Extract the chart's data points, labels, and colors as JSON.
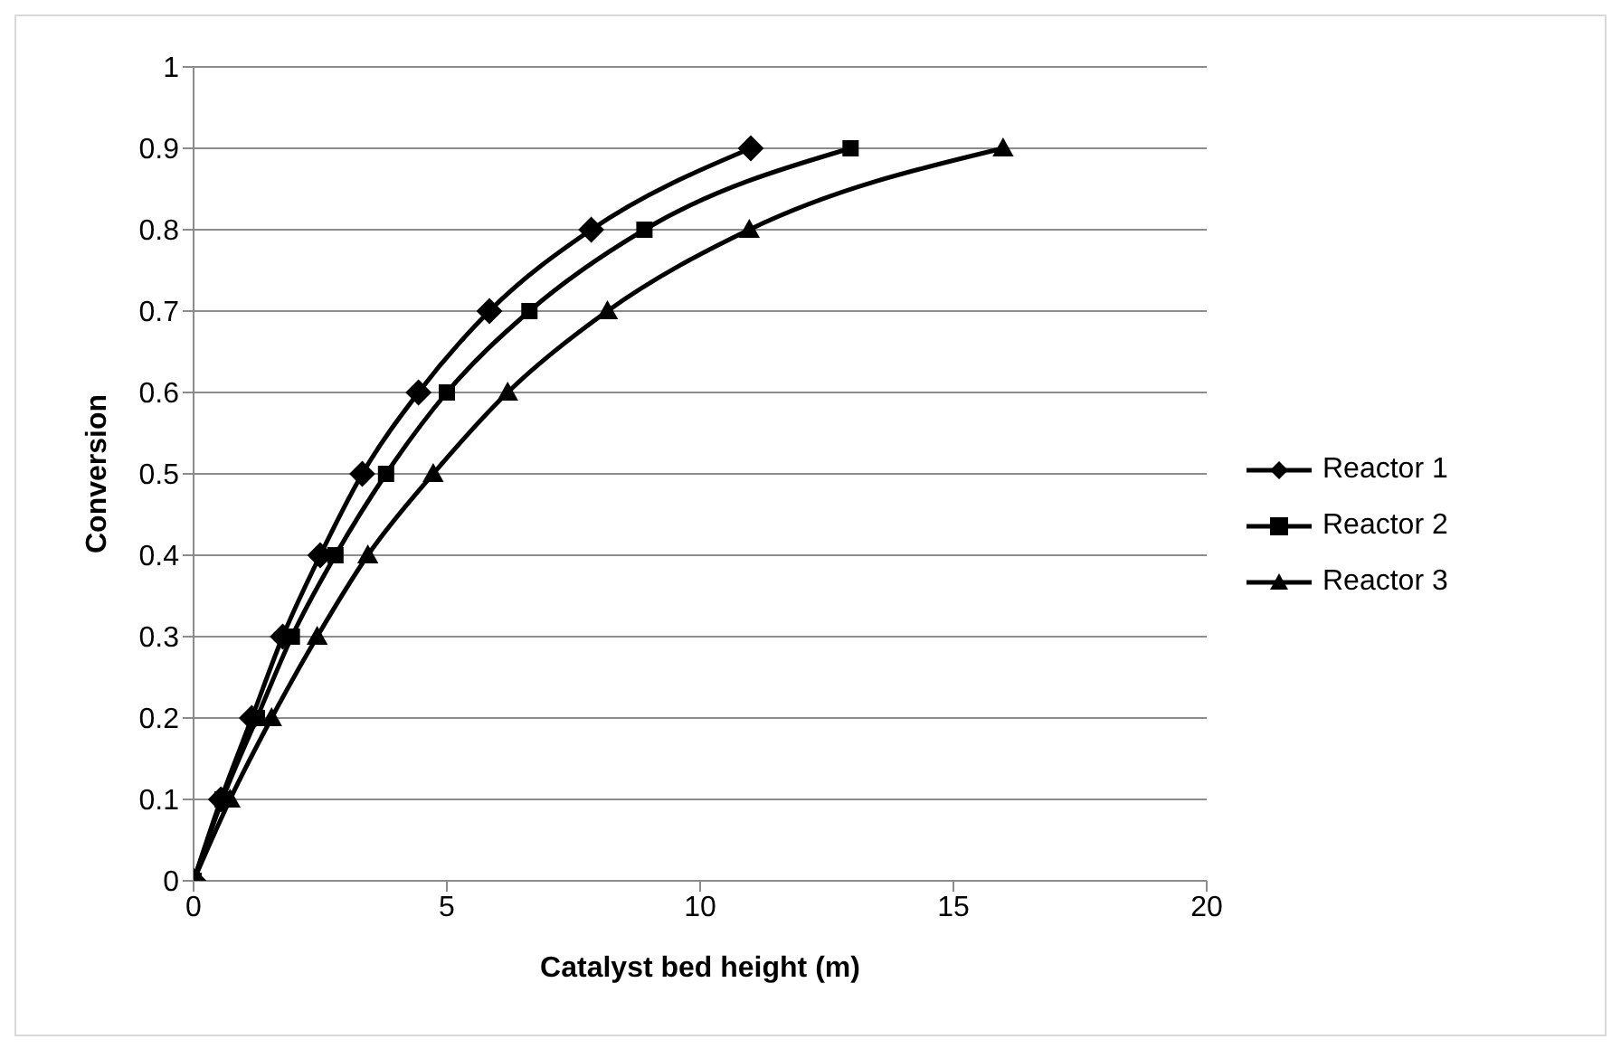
{
  "chart_data": {
    "type": "line",
    "xlabel": "Catalyst bed height (m)",
    "ylabel": "Conversion",
    "xlim": [
      0,
      20
    ],
    "xticks": [
      0,
      5,
      10,
      15,
      20
    ],
    "ylim": [
      0,
      1
    ],
    "yticks": [
      0,
      0.1,
      0.2,
      0.3,
      0.4,
      0.5,
      0.6,
      0.7,
      0.8,
      0.9,
      1
    ],
    "grid": "y",
    "legend": "right",
    "line_style": "solid",
    "series": [
      {
        "name": "Reactor 1",
        "color": "#000000",
        "marker": "diamond",
        "x": [
          0,
          0.54,
          1.15,
          1.76,
          2.5,
          3.33,
          4.44,
          5.84,
          7.85,
          11
        ],
        "values": [
          0,
          0.1,
          0.2,
          0.3,
          0.4,
          0.5,
          0.6,
          0.7,
          0.8,
          0.9
        ]
      },
      {
        "name": "Reactor 2",
        "color": "#000000",
        "marker": "square",
        "x": [
          0,
          0.57,
          1.25,
          1.94,
          2.8,
          3.8,
          5,
          6.63,
          8.9,
          12.97
        ],
        "values": [
          0,
          0.1,
          0.2,
          0.3,
          0.4,
          0.5,
          0.6,
          0.7,
          0.8,
          0.9
        ]
      },
      {
        "name": "Reactor 3",
        "color": "#000000",
        "marker": "triangle",
        "x": [
          0,
          0.72,
          1.54,
          2.44,
          3.44,
          4.73,
          6.2,
          8.17,
          10.97,
          15.98
        ],
        "values": [
          0,
          0.1,
          0.2,
          0.3,
          0.4,
          0.5,
          0.6,
          0.7,
          0.8,
          0.9
        ]
      }
    ]
  }
}
